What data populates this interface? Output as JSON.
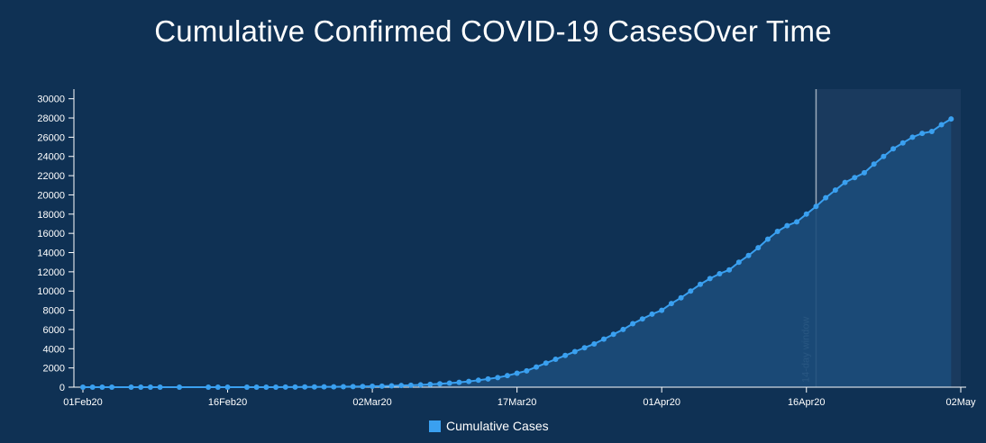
{
  "colors": {
    "background": "#0f3154",
    "line": "#3aa0f0",
    "area": "#1c4c7a",
    "window_shade": "#1a3a5e",
    "window_line": "#9aaabb",
    "axis": "#ffffff"
  },
  "chart_data": {
    "type": "area",
    "title": "Cumulative Confirmed COVID-19 CasesOver Time",
    "xlabel": "",
    "ylabel": "",
    "ylim": [
      0,
      31000
    ],
    "yticks": [
      0,
      2000,
      4000,
      6000,
      8000,
      10000,
      12000,
      14000,
      16000,
      18000,
      20000,
      22000,
      24000,
      26000,
      28000,
      30000
    ],
    "x_start": "2020-02-01",
    "x_end": "2020-05-02",
    "xticks": [
      {
        "date": "2020-02-01",
        "label": "01Feb20"
      },
      {
        "date": "2020-02-16",
        "label": "16Feb20"
      },
      {
        "date": "2020-03-02",
        "label": "02Mar20"
      },
      {
        "date": "2020-03-17",
        "label": "17Mar20"
      },
      {
        "date": "2020-04-01",
        "label": "01Apr20"
      },
      {
        "date": "2020-04-16",
        "label": "16Apr20"
      },
      {
        "date": "2020-05-02",
        "label": "02May"
      }
    ],
    "window": {
      "start": "2020-04-17",
      "end": "2020-05-02",
      "label": "14-day window"
    },
    "grid": false,
    "legend_position": "bottom-center",
    "series": [
      {
        "name": "Cumulative Cases",
        "points": [
          [
            "2020-02-01",
            0
          ],
          [
            "2020-02-02",
            0
          ],
          [
            "2020-02-03",
            0
          ],
          [
            "2020-02-04",
            0
          ],
          [
            "2020-02-06",
            0
          ],
          [
            "2020-02-07",
            0
          ],
          [
            "2020-02-08",
            0
          ],
          [
            "2020-02-09",
            0
          ],
          [
            "2020-02-11",
            0
          ],
          [
            "2020-02-14",
            0
          ],
          [
            "2020-02-15",
            0
          ],
          [
            "2020-02-16",
            0
          ],
          [
            "2020-02-18",
            0
          ],
          [
            "2020-02-19",
            0
          ],
          [
            "2020-02-20",
            0
          ],
          [
            "2020-02-21",
            0
          ],
          [
            "2020-02-22",
            10
          ],
          [
            "2020-02-23",
            15
          ],
          [
            "2020-02-24",
            20
          ],
          [
            "2020-02-25",
            25
          ],
          [
            "2020-02-26",
            30
          ],
          [
            "2020-02-27",
            35
          ],
          [
            "2020-02-28",
            45
          ],
          [
            "2020-02-29",
            55
          ],
          [
            "2020-03-01",
            70
          ],
          [
            "2020-03-02",
            90
          ],
          [
            "2020-03-03",
            110
          ],
          [
            "2020-03-04",
            140
          ],
          [
            "2020-03-05",
            170
          ],
          [
            "2020-03-06",
            200
          ],
          [
            "2020-03-07",
            240
          ],
          [
            "2020-03-08",
            290
          ],
          [
            "2020-03-09",
            350
          ],
          [
            "2020-03-10",
            420
          ],
          [
            "2020-03-11",
            500
          ],
          [
            "2020-03-12",
            600
          ],
          [
            "2020-03-13",
            720
          ],
          [
            "2020-03-14",
            850
          ],
          [
            "2020-03-15",
            1000
          ],
          [
            "2020-03-16",
            1200
          ],
          [
            "2020-03-17",
            1450
          ],
          [
            "2020-03-18",
            1700
          ],
          [
            "2020-03-19",
            2100
          ],
          [
            "2020-03-20",
            2500
          ],
          [
            "2020-03-21",
            2900
          ],
          [
            "2020-03-22",
            3300
          ],
          [
            "2020-03-23",
            3700
          ],
          [
            "2020-03-24",
            4100
          ],
          [
            "2020-03-25",
            4500
          ],
          [
            "2020-03-26",
            5000
          ],
          [
            "2020-03-27",
            5500
          ],
          [
            "2020-03-28",
            6000
          ],
          [
            "2020-03-29",
            6600
          ],
          [
            "2020-03-30",
            7100
          ],
          [
            "2020-03-31",
            7600
          ],
          [
            "2020-04-01",
            8000
          ],
          [
            "2020-04-02",
            8700
          ],
          [
            "2020-04-03",
            9300
          ],
          [
            "2020-04-04",
            10000
          ],
          [
            "2020-04-05",
            10700
          ],
          [
            "2020-04-06",
            11300
          ],
          [
            "2020-04-07",
            11800
          ],
          [
            "2020-04-08",
            12200
          ],
          [
            "2020-04-09",
            13000
          ],
          [
            "2020-04-10",
            13700
          ],
          [
            "2020-04-11",
            14500
          ],
          [
            "2020-04-12",
            15400
          ],
          [
            "2020-04-13",
            16200
          ],
          [
            "2020-04-14",
            16800
          ],
          [
            "2020-04-15",
            17200
          ],
          [
            "2020-04-16",
            18000
          ],
          [
            "2020-04-17",
            18800
          ],
          [
            "2020-04-18",
            19700
          ],
          [
            "2020-04-19",
            20500
          ],
          [
            "2020-04-20",
            21300
          ],
          [
            "2020-04-21",
            21800
          ],
          [
            "2020-04-22",
            22300
          ],
          [
            "2020-04-23",
            23200
          ],
          [
            "2020-04-24",
            24000
          ],
          [
            "2020-04-25",
            24800
          ],
          [
            "2020-04-26",
            25400
          ],
          [
            "2020-04-27",
            26000
          ],
          [
            "2020-04-28",
            26400
          ],
          [
            "2020-04-29",
            26600
          ],
          [
            "2020-04-30",
            27300
          ],
          [
            "2020-05-01",
            27900
          ]
        ]
      }
    ],
    "legend": [
      {
        "label": "Cumulative Cases",
        "color": "#3aa0f0"
      }
    ]
  }
}
